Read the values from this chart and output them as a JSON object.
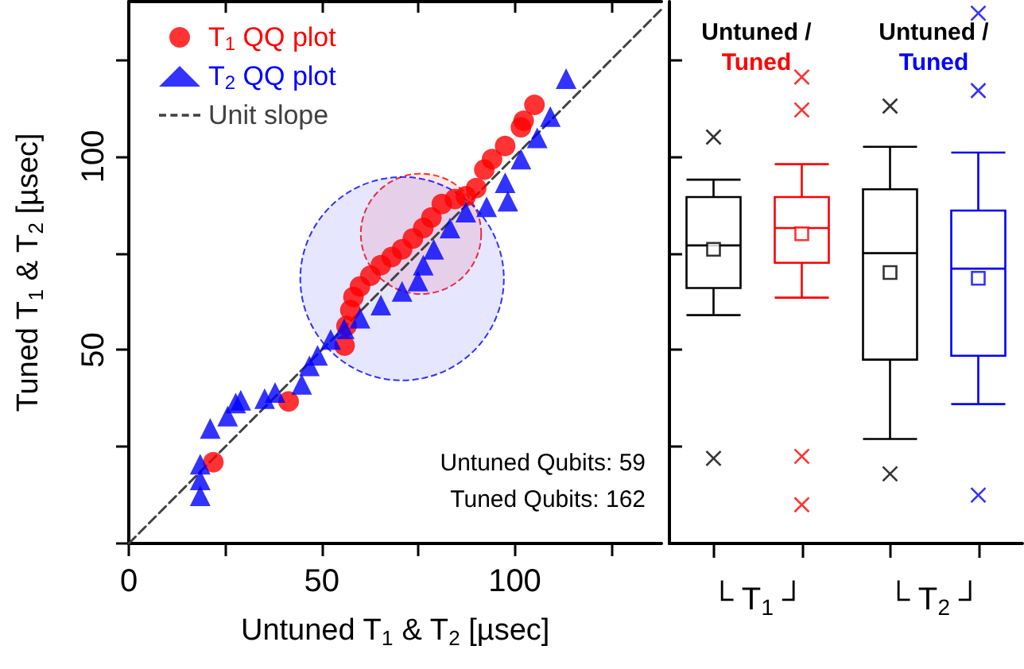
{
  "chart_data": [
    {
      "type": "scatter",
      "xlabel": "Untuned T$_{1}$ & T$_{2}$ [µsec]",
      "ylabel": "Tuned T$_{1}$ & T$_{2}$ [µsec]",
      "xlim": [
        0,
        138
      ],
      "ylim": [
        0,
        140
      ],
      "xticks": [
        0,
        {
          "value": 25,
          "label": null
        },
        50,
        {
          "value": 75,
          "label": null
        },
        100,
        {
          "value": 125,
          "label": null
        }
      ],
      "yticks": [
        {
          "value": 0,
          "label": null
        },
        {
          "value": 25,
          "label": null
        },
        50,
        {
          "value": 75,
          "label": null
        },
        100,
        {
          "value": 125,
          "label": null
        }
      ],
      "legend": "top left",
      "annotations": [
        "Untuned Qubits: 59",
        "Tuned Qubits: 162"
      ],
      "series": [
        {
          "name": "T$_{1}$ QQ plot",
          "color": "#ff0000",
          "marker": "circle",
          "x": [
            21.9,
            41.4,
            55.9,
            56.4,
            57.4,
            58.2,
            59.9,
            62.6,
            65.3,
            68.1,
            70.8,
            73.6,
            76.3,
            78.4,
            81.1,
            84.5,
            87.3,
            90,
            92.1,
            94.1,
            97.5,
            101.6,
            102.3,
            105.1
          ],
          "values": [
            21,
            36.7,
            51.1,
            56.2,
            60.3,
            63.7,
            66.4,
            69.2,
            71.9,
            74,
            76,
            78.8,
            81.5,
            84.2,
            87.7,
            89,
            89.7,
            91.8,
            96.6,
            99.3,
            102.7,
            107.5,
            109.2,
            113.3
          ]
        },
        {
          "name": "T$_{2}$ QQ plot",
          "color": "#0000ff",
          "marker": "triangle",
          "x": [
            18.5,
            18.5,
            18.5,
            21.1,
            25.6,
            27.7,
            29,
            35.2,
            37.9,
            44.8,
            46.8,
            48.9,
            52.3,
            55.8,
            59.9,
            65.3,
            70.8,
            74.9,
            76.3,
            79,
            83.2,
            87.3,
            92.7,
            98.2,
            97.5,
            101.6,
            105.8,
            109.2,
            113.3
          ],
          "values": [
            12.3,
            16.4,
            20.5,
            29.7,
            32.9,
            36.3,
            37,
            37.4,
            39,
            41.1,
            45.9,
            48.6,
            52.7,
            55.5,
            58.2,
            61.6,
            65.1,
            67.8,
            71.9,
            76,
            81.5,
            85.6,
            87,
            88.4,
            93.2,
            99.3,
            104.8,
            110.3,
            120.1
          ]
        },
        {
          "name": "Unit slope",
          "type": "line",
          "color": "#404040",
          "line_style": "dashed",
          "marker": "none",
          "x": [
            0,
            138
          ],
          "values": [
            0,
            138
          ]
        },
        {
          "type": "bubble",
          "color": "#ff0000",
          "x": [
            75.7
          ],
          "values": [
            80
          ],
          "sizes": [
            0.35
          ]
        },
        {
          "type": "bubble",
          "color": "#0000ff",
          "x": [
            70.8
          ],
          "values": [
            68.4
          ],
          "sizes": [
            1
          ]
        }
      ]
    },
    {
      "type": "box",
      "categories": [
        "└ T$_{1}$ ┘",
        "└ T$_{2}$ ┘"
      ],
      "ylim": [
        0,
        140
      ],
      "yticks": [
        {
          "value": 0,
          "label": null
        },
        {
          "value": 25,
          "label": null
        },
        {
          "value": 50,
          "label": null
        },
        {
          "value": 75,
          "label": null
        },
        {
          "value": 100,
          "label": null
        },
        {
          "value": 125,
          "label": null
        }
      ],
      "tick_labels": "x",
      "annotations": [
        "Untuned /",
        "Tuned",
        "Untuned /",
        "Tuned"
      ],
      "series": [
        {
          "color": "#000000",
          "boxes": [
            {
              "low": 59,
              "q1": 66,
              "median": 77,
              "q3": 89.5,
              "high": 94,
              "mean": 76,
              "outliers": [
                105,
                22
              ]
            },
            {
              "low": 27,
              "q1": 47.5,
              "median": 75,
              "q3": 91.5,
              "high": 102.5,
              "mean": 70,
              "outliers": [
                113,
                18
              ]
            }
          ]
        },
        {
          "colors": [
            "#ff0000",
            "#0000ff"
          ],
          "boxes": [
            {
              "low": 63.5,
              "q1": 72.5,
              "median": 81.5,
              "q3": 89.5,
              "high": 98,
              "mean": 80,
              "outliers": [
                112,
                22.5,
                120.5,
                10
              ]
            },
            {
              "low": 36,
              "q1": 48.5,
              "median": 71,
              "q3": 86,
              "high": 101,
              "mean": 68.5,
              "outliers": [
                117,
                12.5,
                137
              ]
            }
          ]
        }
      ]
    }
  ]
}
